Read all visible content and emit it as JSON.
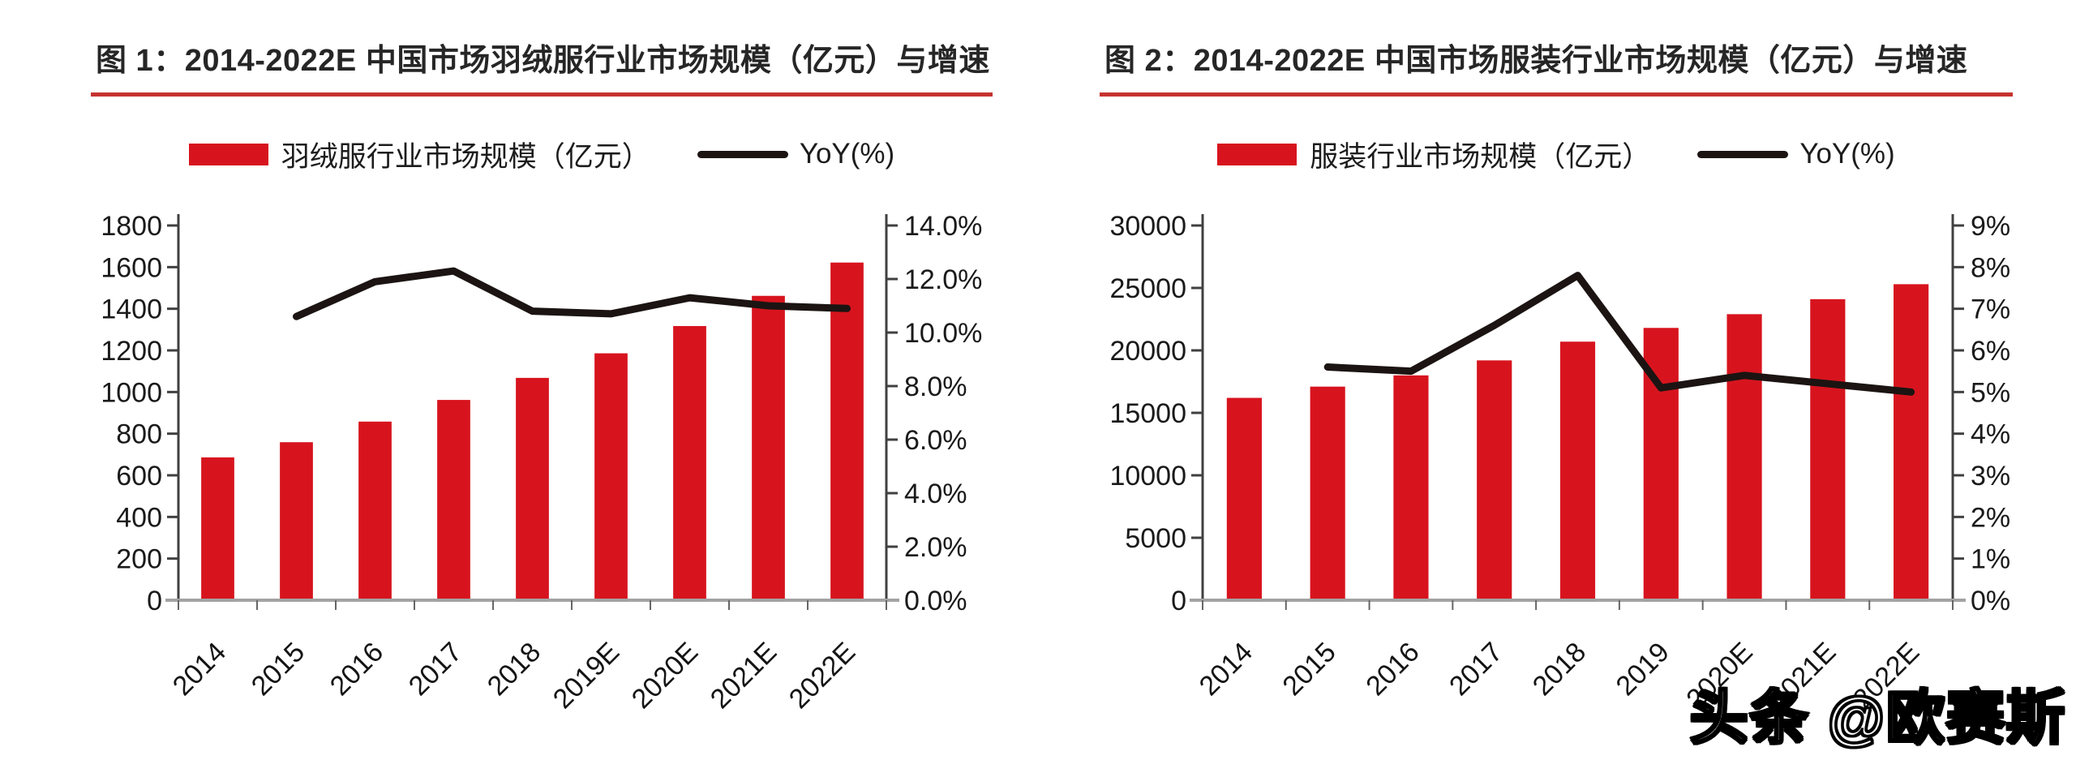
{
  "watermark": {
    "text": "头条 @欧赛斯"
  },
  "charts": [
    {
      "title": "图 1：2014-2022E 中国市场羽绒服行业市场规模（亿元）与增速",
      "legend": {
        "bar_label": "羽绒服行业市场规模（亿元）",
        "line_label": "YoY(%)"
      },
      "colors": {
        "bar": "#d7141e",
        "line": "#1b1412",
        "title_underline": "#c5322f"
      },
      "chart_data": {
        "type": "bar+line",
        "categories": [
          "2014",
          "2015",
          "2016",
          "2017",
          "2018",
          "2019E",
          "2020E",
          "2021E",
          "2022E"
        ],
        "series": [
          {
            "name": "羽绒服行业市场规模（亿元）",
            "type": "bar",
            "axis": "left",
            "values": [
              686,
              759,
              858,
              962,
              1068,
              1186,
              1317,
              1462,
              1622
            ]
          },
          {
            "name": "YoY(%)",
            "type": "line",
            "axis": "right",
            "values": [
              null,
              10.6,
              11.9,
              12.3,
              10.8,
              10.7,
              11.3,
              11.0,
              10.9
            ]
          }
        ],
        "left_axis": {
          "min": 0,
          "max": 1800,
          "step": 200,
          "format": "int"
        },
        "right_axis": {
          "min": 0,
          "max": 14,
          "step": 2,
          "format": "pct1"
        },
        "grid": false,
        "legend_position": "top"
      }
    },
    {
      "title": "图 2：2014-2022E 中国市场服装行业市场规模（亿元）与增速",
      "legend": {
        "bar_label": "服装行业市场规模（亿元）",
        "line_label": "YoY(%)"
      },
      "colors": {
        "bar": "#d7141e",
        "line": "#1b1412",
        "title_underline": "#c5322f"
      },
      "chart_data": {
        "type": "bar+line",
        "categories": [
          "2014",
          "2015",
          "2016",
          "2017",
          "2018",
          "2019",
          "2020E",
          "2021E",
          "2022E"
        ],
        "series": [
          {
            "name": "服装行业市场规模（亿元）",
            "type": "bar",
            "axis": "left",
            "values": [
              16200,
              17100,
              18000,
              19200,
              20700,
              21800,
              22900,
              24100,
              25300
            ]
          },
          {
            "name": "YoY(%)",
            "type": "line",
            "axis": "right",
            "values": [
              null,
              5.6,
              5.5,
              6.6,
              7.8,
              5.1,
              5.4,
              5.2,
              5.0
            ]
          }
        ],
        "left_axis": {
          "min": 0,
          "max": 30000,
          "step": 5000,
          "format": "int"
        },
        "right_axis": {
          "min": 0,
          "max": 9,
          "step": 1,
          "format": "pct0"
        },
        "grid": false,
        "legend_position": "top"
      }
    }
  ]
}
